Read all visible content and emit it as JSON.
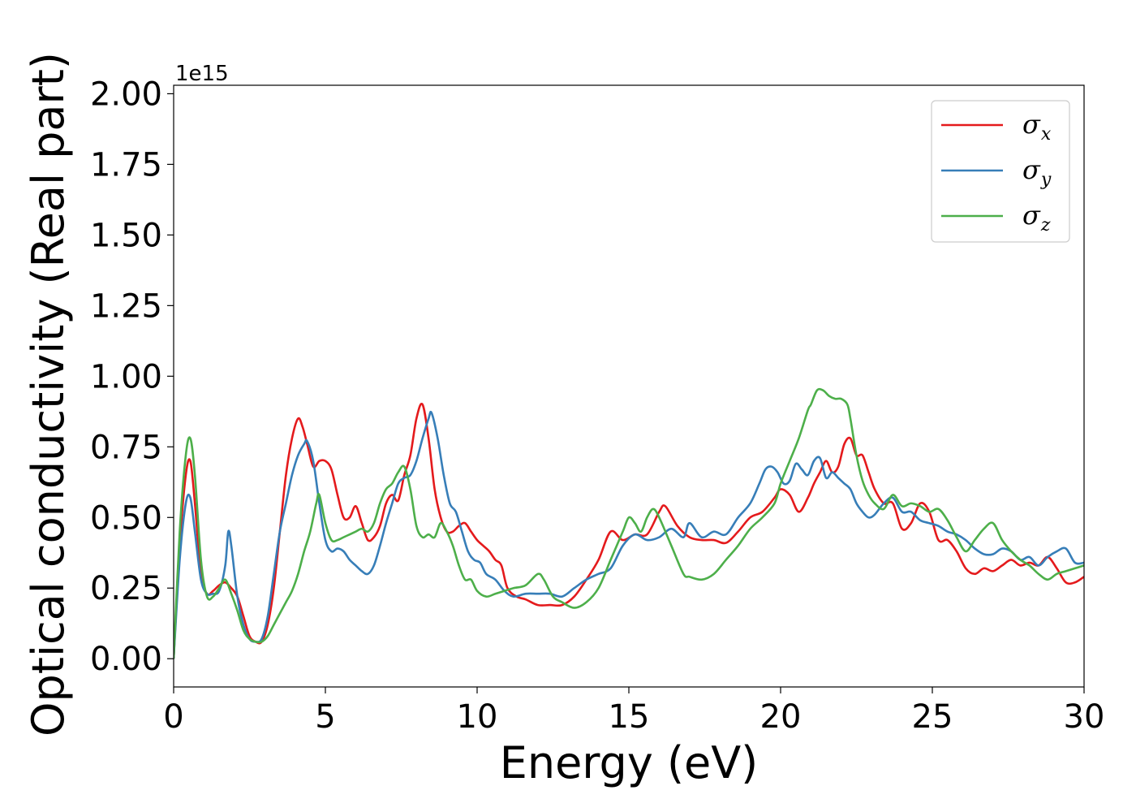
{
  "chart_data": {
    "type": "line",
    "title": "",
    "xlabel": "Energy (eV)",
    "ylabel": "Optical conductivity (Real part)",
    "y_offset_text": "1e15",
    "y_scale_multiplier": 1000000000000000.0,
    "xlim": [
      0,
      30
    ],
    "ylim": [
      -0.1,
      2.03
    ],
    "x_ticks": [
      0,
      5,
      10,
      15,
      20,
      25,
      30
    ],
    "x_tick_labels": [
      "0",
      "5",
      "10",
      "15",
      "20",
      "25",
      "30"
    ],
    "y_ticks": [
      0,
      0.25,
      0.5,
      0.75,
      1.0,
      1.25,
      1.5,
      1.75,
      2.0
    ],
    "y_tick_labels": [
      "0.00",
      "0.25",
      "0.50",
      "0.75",
      "1.00",
      "1.25",
      "1.50",
      "1.75",
      "2.00"
    ],
    "grid": false,
    "legend_position": "top-right",
    "series": [
      {
        "name": "σ",
        "subscript": "x",
        "color": "#e41a1c",
        "x": [
          0,
          0.2,
          0.4,
          0.55,
          0.7,
          0.9,
          1.1,
          1.3,
          1.5,
          1.7,
          1.9,
          2.1,
          2.3,
          2.5,
          2.7,
          2.9,
          3.1,
          3.3,
          3.5,
          3.7,
          3.9,
          4.1,
          4.25,
          4.4,
          4.6,
          4.8,
          5.0,
          5.2,
          5.4,
          5.6,
          5.8,
          6.0,
          6.2,
          6.4,
          6.6,
          6.8,
          7.0,
          7.2,
          7.4,
          7.6,
          7.8,
          8.0,
          8.2,
          8.4,
          8.6,
          8.8,
          9.0,
          9.2,
          9.4,
          9.6,
          9.8,
          10.0,
          10.2,
          10.4,
          10.6,
          10.8,
          11.0,
          11.3,
          11.6,
          12.0,
          12.4,
          12.8,
          13.2,
          13.6,
          14.0,
          14.4,
          14.8,
          15.2,
          15.6,
          16.0,
          16.2,
          16.6,
          17.0,
          17.4,
          17.8,
          18.2,
          18.6,
          19.0,
          19.4,
          19.8,
          20.0,
          20.3,
          20.6,
          20.9,
          21.1,
          21.3,
          21.5,
          21.7,
          21.9,
          22.1,
          22.3,
          22.5,
          22.7,
          22.9,
          23.1,
          23.4,
          23.7,
          24.0,
          24.3,
          24.6,
          24.9,
          25.2,
          25.5,
          25.8,
          26.1,
          26.4,
          26.7,
          27.0,
          27.3,
          27.6,
          27.9,
          28.2,
          28.5,
          28.8,
          29.1,
          29.4,
          29.7,
          30.0
        ],
        "values": [
          0.0,
          0.4,
          0.65,
          0.7,
          0.55,
          0.3,
          0.23,
          0.24,
          0.26,
          0.27,
          0.25,
          0.22,
          0.15,
          0.08,
          0.06,
          0.06,
          0.12,
          0.25,
          0.45,
          0.65,
          0.78,
          0.85,
          0.82,
          0.76,
          0.68,
          0.7,
          0.7,
          0.67,
          0.58,
          0.5,
          0.5,
          0.54,
          0.48,
          0.42,
          0.43,
          0.47,
          0.55,
          0.58,
          0.56,
          0.65,
          0.72,
          0.85,
          0.9,
          0.78,
          0.6,
          0.5,
          0.45,
          0.45,
          0.47,
          0.48,
          0.45,
          0.42,
          0.4,
          0.38,
          0.35,
          0.33,
          0.25,
          0.22,
          0.21,
          0.19,
          0.19,
          0.19,
          0.22,
          0.28,
          0.35,
          0.45,
          0.42,
          0.44,
          0.44,
          0.52,
          0.54,
          0.47,
          0.43,
          0.42,
          0.42,
          0.41,
          0.45,
          0.5,
          0.52,
          0.57,
          0.6,
          0.58,
          0.52,
          0.57,
          0.62,
          0.66,
          0.7,
          0.66,
          0.68,
          0.76,
          0.78,
          0.72,
          0.72,
          0.66,
          0.6,
          0.55,
          0.55,
          0.46,
          0.48,
          0.55,
          0.52,
          0.42,
          0.42,
          0.38,
          0.32,
          0.3,
          0.32,
          0.31,
          0.33,
          0.35,
          0.33,
          0.34,
          0.33,
          0.36,
          0.32,
          0.27,
          0.27,
          0.29
        ]
      },
      {
        "name": "σ",
        "subscript": "y",
        "color": "#377eb8",
        "x": [
          0,
          0.2,
          0.4,
          0.55,
          0.7,
          0.9,
          1.1,
          1.3,
          1.5,
          1.7,
          1.8,
          1.9,
          2.1,
          2.3,
          2.5,
          2.7,
          2.9,
          3.1,
          3.3,
          3.5,
          3.7,
          3.9,
          4.1,
          4.3,
          4.4,
          4.6,
          4.8,
          5.0,
          5.2,
          5.4,
          5.6,
          5.8,
          6.0,
          6.2,
          6.4,
          6.6,
          6.8,
          7.0,
          7.2,
          7.4,
          7.6,
          7.8,
          8.0,
          8.2,
          8.4,
          8.5,
          8.7,
          8.9,
          9.1,
          9.3,
          9.5,
          9.7,
          9.9,
          10.1,
          10.3,
          10.6,
          10.9,
          11.2,
          11.6,
          12.0,
          12.4,
          12.8,
          13.2,
          13.6,
          14.0,
          14.4,
          14.8,
          15.2,
          15.6,
          16.0,
          16.4,
          16.8,
          17.0,
          17.4,
          17.8,
          18.2,
          18.6,
          19.0,
          19.3,
          19.5,
          19.7,
          19.9,
          20.1,
          20.3,
          20.5,
          20.7,
          20.9,
          21.1,
          21.3,
          21.5,
          21.7,
          21.9,
          22.1,
          22.3,
          22.5,
          22.7,
          22.9,
          23.1,
          23.4,
          23.7,
          24.0,
          24.3,
          24.6,
          24.9,
          25.2,
          25.5,
          25.8,
          26.1,
          26.4,
          26.7,
          27.0,
          27.3,
          27.6,
          27.9,
          28.2,
          28.5,
          28.8,
          29.1,
          29.4,
          29.7,
          30.0
        ],
        "values": [
          0.0,
          0.35,
          0.55,
          0.57,
          0.45,
          0.28,
          0.23,
          0.23,
          0.24,
          0.33,
          0.45,
          0.4,
          0.22,
          0.12,
          0.07,
          0.06,
          0.07,
          0.15,
          0.3,
          0.45,
          0.55,
          0.65,
          0.72,
          0.76,
          0.77,
          0.7,
          0.55,
          0.42,
          0.38,
          0.39,
          0.38,
          0.35,
          0.33,
          0.31,
          0.3,
          0.33,
          0.4,
          0.48,
          0.55,
          0.62,
          0.64,
          0.65,
          0.7,
          0.78,
          0.85,
          0.87,
          0.78,
          0.65,
          0.55,
          0.52,
          0.45,
          0.38,
          0.35,
          0.34,
          0.3,
          0.28,
          0.24,
          0.22,
          0.23,
          0.23,
          0.23,
          0.22,
          0.25,
          0.28,
          0.3,
          0.32,
          0.4,
          0.44,
          0.42,
          0.43,
          0.46,
          0.43,
          0.48,
          0.43,
          0.45,
          0.44,
          0.5,
          0.55,
          0.62,
          0.67,
          0.68,
          0.66,
          0.62,
          0.63,
          0.69,
          0.67,
          0.65,
          0.7,
          0.71,
          0.64,
          0.66,
          0.64,
          0.62,
          0.6,
          0.55,
          0.52,
          0.5,
          0.51,
          0.55,
          0.57,
          0.52,
          0.52,
          0.49,
          0.48,
          0.47,
          0.45,
          0.44,
          0.42,
          0.39,
          0.37,
          0.37,
          0.39,
          0.38,
          0.35,
          0.36,
          0.33,
          0.36,
          0.38,
          0.39,
          0.34,
          0.34
        ]
      },
      {
        "name": "σ",
        "subscript": "z",
        "color": "#4daf4a",
        "x": [
          0,
          0.2,
          0.4,
          0.55,
          0.7,
          0.9,
          1.1,
          1.3,
          1.5,
          1.7,
          1.9,
          2.1,
          2.3,
          2.5,
          2.7,
          2.9,
          3.1,
          3.3,
          3.5,
          3.7,
          3.9,
          4.1,
          4.3,
          4.5,
          4.7,
          4.8,
          5.0,
          5.2,
          5.4,
          5.6,
          5.8,
          6.0,
          6.2,
          6.4,
          6.6,
          6.8,
          7.0,
          7.2,
          7.4,
          7.6,
          7.8,
          8.0,
          8.2,
          8.4,
          8.6,
          8.8,
          9.0,
          9.2,
          9.4,
          9.6,
          9.8,
          10.0,
          10.3,
          10.6,
          10.9,
          11.2,
          11.6,
          12.0,
          12.2,
          12.5,
          12.8,
          13.2,
          13.6,
          14.0,
          14.4,
          14.8,
          15.0,
          15.2,
          15.4,
          15.6,
          15.8,
          16.0,
          16.4,
          16.8,
          17.0,
          17.4,
          17.8,
          18.2,
          18.6,
          19.0,
          19.4,
          19.8,
          20.0,
          20.3,
          20.6,
          20.9,
          21.0,
          21.2,
          21.4,
          21.6,
          21.8,
          22.0,
          22.2,
          22.3,
          22.5,
          22.7,
          22.9,
          23.1,
          23.4,
          23.7,
          24.0,
          24.3,
          24.6,
          24.9,
          25.2,
          25.5,
          25.8,
          26.1,
          26.4,
          26.7,
          27.0,
          27.3,
          27.6,
          27.9,
          28.2,
          28.5,
          28.8,
          29.1,
          29.4,
          29.7,
          30.0
        ],
        "values": [
          0.0,
          0.45,
          0.72,
          0.78,
          0.65,
          0.35,
          0.22,
          0.22,
          0.25,
          0.28,
          0.23,
          0.17,
          0.1,
          0.07,
          0.06,
          0.06,
          0.08,
          0.12,
          0.16,
          0.2,
          0.24,
          0.3,
          0.38,
          0.45,
          0.55,
          0.58,
          0.48,
          0.42,
          0.42,
          0.43,
          0.44,
          0.45,
          0.46,
          0.45,
          0.48,
          0.55,
          0.6,
          0.62,
          0.66,
          0.68,
          0.6,
          0.47,
          0.43,
          0.44,
          0.43,
          0.48,
          0.45,
          0.4,
          0.33,
          0.28,
          0.28,
          0.24,
          0.22,
          0.23,
          0.24,
          0.25,
          0.26,
          0.3,
          0.28,
          0.22,
          0.2,
          0.18,
          0.2,
          0.25,
          0.35,
          0.45,
          0.5,
          0.48,
          0.45,
          0.5,
          0.53,
          0.5,
          0.4,
          0.3,
          0.29,
          0.28,
          0.3,
          0.35,
          0.4,
          0.46,
          0.5,
          0.55,
          0.62,
          0.7,
          0.78,
          0.88,
          0.9,
          0.95,
          0.95,
          0.93,
          0.92,
          0.92,
          0.9,
          0.85,
          0.72,
          0.63,
          0.58,
          0.55,
          0.53,
          0.58,
          0.54,
          0.55,
          0.54,
          0.52,
          0.53,
          0.49,
          0.43,
          0.38,
          0.42,
          0.46,
          0.48,
          0.42,
          0.38,
          0.35,
          0.33,
          0.3,
          0.28,
          0.3,
          0.31,
          0.32,
          0.33
        ]
      }
    ]
  }
}
